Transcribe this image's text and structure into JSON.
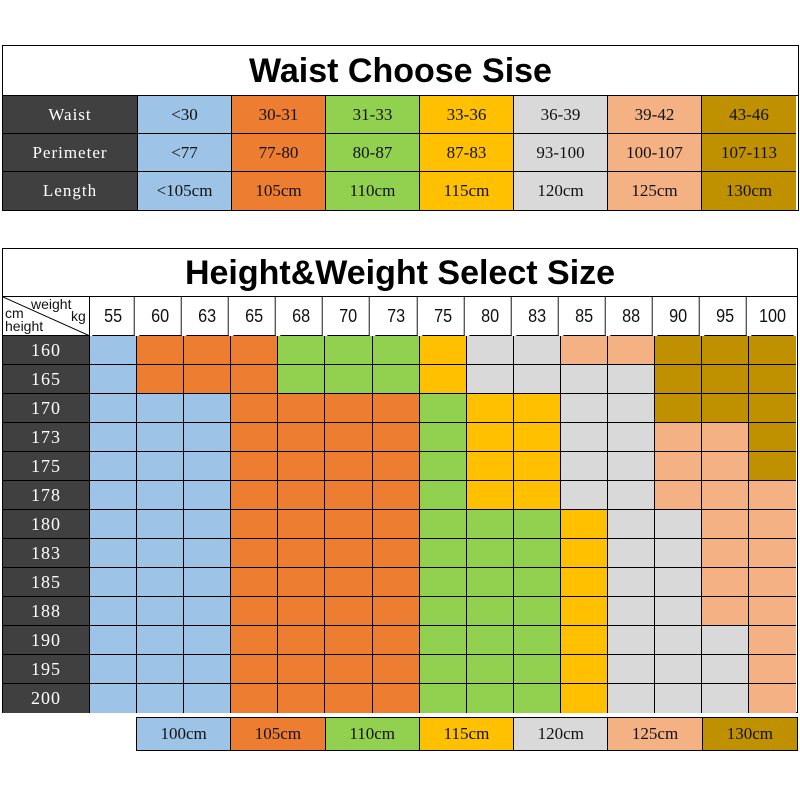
{
  "colors": {
    "blue": "#9dc3e6",
    "orange": "#ed7d31",
    "green": "#92d050",
    "yellow": "#ffc000",
    "grey": "#d9d9d9",
    "peach": "#f4b183",
    "brown": "#bf9000",
    "label": "#404040"
  },
  "waist_table": {
    "title": "Waist Choose Sise",
    "rows": [
      {
        "label": "Waist",
        "values": [
          "<30",
          "30-31",
          "31-33",
          "33-36",
          "36-39",
          "39-42",
          "43-46"
        ]
      },
      {
        "label": "Perimeter",
        "values": [
          "<77",
          "77-80",
          "80-87",
          "87-83",
          "93-100",
          "100-107",
          "107-113"
        ]
      },
      {
        "label": "Length",
        "values": [
          "<105cm",
          "105cm",
          "110cm",
          "115cm",
          "120cm",
          "125cm",
          "130cm"
        ]
      }
    ],
    "column_colors": [
      "blue",
      "orange",
      "green",
      "yellow",
      "grey",
      "peach",
      "brown"
    ]
  },
  "size_table": {
    "title": "Height&Weight Select Size",
    "corner": {
      "weight": "weight",
      "kg": "kg",
      "cm": "cm",
      "height": "height"
    },
    "weights": [
      "55",
      "60",
      "63",
      "65",
      "68",
      "70",
      "73",
      "75",
      "80",
      "83",
      "85",
      "88",
      "90",
      "95",
      "100"
    ],
    "heights": [
      "160",
      "165",
      "170",
      "173",
      "175",
      "178",
      "180",
      "183",
      "185",
      "188",
      "190",
      "195",
      "200"
    ],
    "grid": [
      [
        0,
        1,
        1,
        1,
        2,
        2,
        2,
        3,
        4,
        4,
        5,
        5,
        6,
        6,
        6
      ],
      [
        0,
        1,
        1,
        1,
        2,
        2,
        2,
        3,
        4,
        4,
        4,
        4,
        6,
        6,
        6
      ],
      [
        0,
        0,
        0,
        1,
        1,
        1,
        1,
        2,
        3,
        3,
        4,
        4,
        6,
        6,
        6
      ],
      [
        0,
        0,
        0,
        1,
        1,
        1,
        1,
        2,
        3,
        3,
        4,
        4,
        5,
        5,
        6
      ],
      [
        0,
        0,
        0,
        1,
        1,
        1,
        1,
        2,
        3,
        3,
        4,
        4,
        5,
        5,
        6
      ],
      [
        0,
        0,
        0,
        1,
        1,
        1,
        1,
        2,
        3,
        3,
        4,
        4,
        5,
        5,
        5
      ],
      [
        0,
        0,
        0,
        1,
        1,
        1,
        1,
        2,
        2,
        2,
        3,
        4,
        4,
        5,
        5
      ],
      [
        0,
        0,
        0,
        1,
        1,
        1,
        1,
        2,
        2,
        2,
        3,
        4,
        4,
        5,
        5
      ],
      [
        0,
        0,
        0,
        1,
        1,
        1,
        1,
        2,
        2,
        2,
        3,
        4,
        4,
        5,
        5
      ],
      [
        0,
        0,
        0,
        1,
        1,
        1,
        1,
        2,
        2,
        2,
        3,
        4,
        4,
        5,
        5
      ],
      [
        0,
        0,
        0,
        1,
        1,
        1,
        1,
        2,
        2,
        2,
        3,
        4,
        4,
        4,
        5
      ],
      [
        0,
        0,
        0,
        1,
        1,
        1,
        1,
        2,
        2,
        2,
        3,
        4,
        4,
        4,
        5
      ],
      [
        0,
        0,
        0,
        1,
        1,
        1,
        1,
        2,
        2,
        2,
        3,
        4,
        4,
        4,
        5
      ]
    ]
  },
  "legend": [
    "100cm",
    "105cm",
    "110cm",
    "115cm",
    "120cm",
    "125cm",
    "130cm"
  ]
}
